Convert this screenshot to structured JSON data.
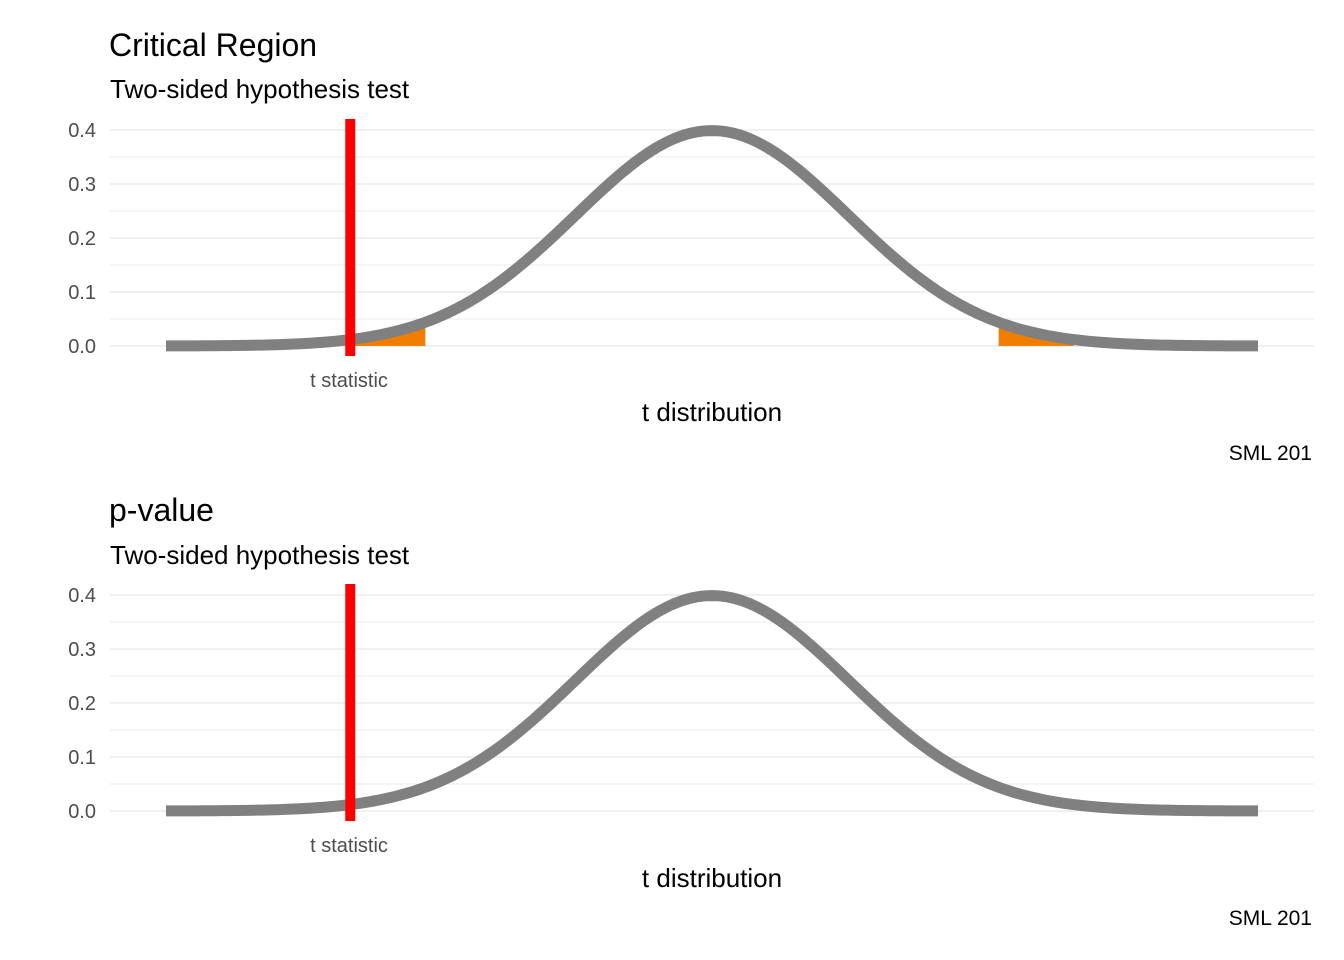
{
  "chart_data": [
    {
      "type": "line",
      "title": "Critical Region",
      "subtitle": "Two-sided hypothesis test",
      "xlabel": "t distribution",
      "ylabel": "",
      "caption": "SML 201",
      "ylim": [
        0,
        0.4
      ],
      "y_ticks": [
        "0.0",
        "0.1",
        "0.2",
        "0.3",
        "0.4"
      ],
      "x_tick_label": "t statistic",
      "x_range": [
        -4,
        4
      ],
      "t_statistic": -2.65,
      "critical_values": [
        -2.1,
        2.1
      ],
      "shaded_tails": true,
      "grid": true,
      "colors": {
        "curve": "#808080",
        "t_line": "#ff0000",
        "tail_fill": "#f07c00",
        "grid": "#ebebeb"
      }
    },
    {
      "type": "line",
      "title": "p-value",
      "subtitle": "Two-sided hypothesis test",
      "xlabel": "t distribution",
      "ylabel": "",
      "caption": "SML 201",
      "ylim": [
        0,
        0.4
      ],
      "y_ticks": [
        "0.0",
        "0.1",
        "0.2",
        "0.3",
        "0.4"
      ],
      "x_tick_label": "t statistic",
      "x_range": [
        -4,
        4
      ],
      "t_statistic": -2.65,
      "critical_values": [],
      "shaded_tails": false,
      "grid": true,
      "colors": {
        "curve": "#808080",
        "t_line": "#ff0000",
        "tail_fill": "#f07c00",
        "grid": "#ebebeb"
      }
    }
  ]
}
